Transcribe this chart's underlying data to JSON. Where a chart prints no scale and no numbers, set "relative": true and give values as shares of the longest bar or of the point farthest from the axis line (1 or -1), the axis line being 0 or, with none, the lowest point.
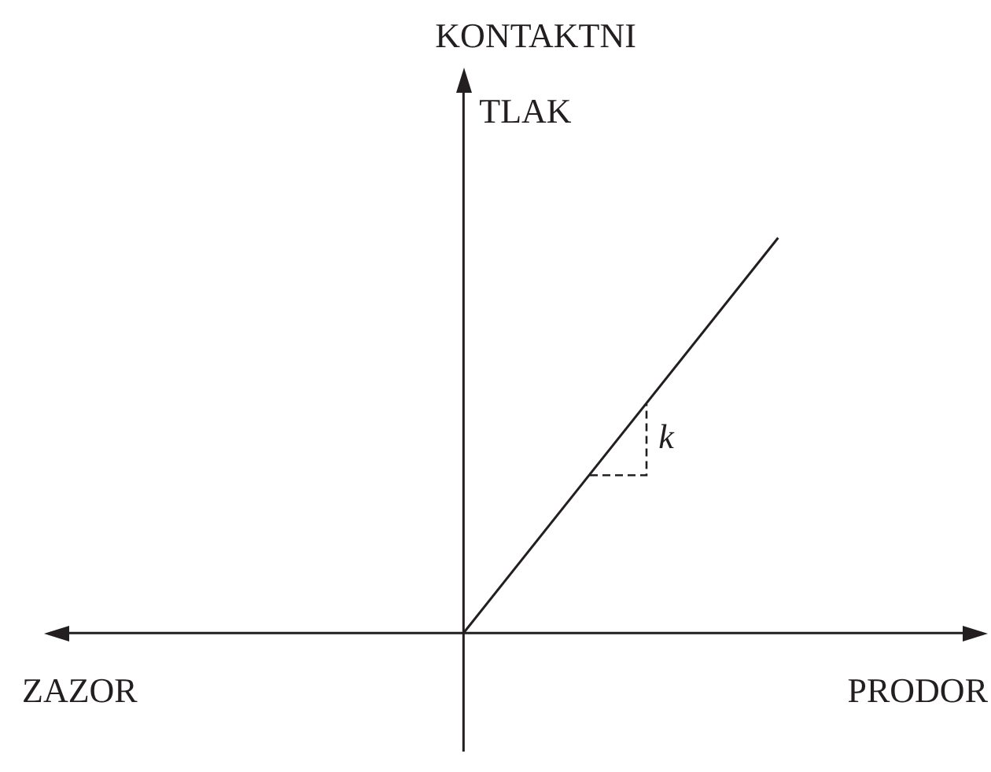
{
  "chart_data": {
    "type": "line",
    "relative": true,
    "ylabel": "KONTAKTNI TLAK",
    "xlabel": "PRODOR",
    "annotations": [
      "ZAZOR",
      "k"
    ],
    "categories": [
      null,
      null,
      null,
      null,
      null,
      null,
      null,
      null,
      null,
      null
    ],
    "series": [
      {
        "color": "#231f20",
        "values": [
          null,
          null,
          null,
          null,
          0,
          null,
          null,
          1,
          null,
          null
        ]
      }
    ],
    "legend": false,
    "marker": "none",
    "line_style": "solid"
  }
}
